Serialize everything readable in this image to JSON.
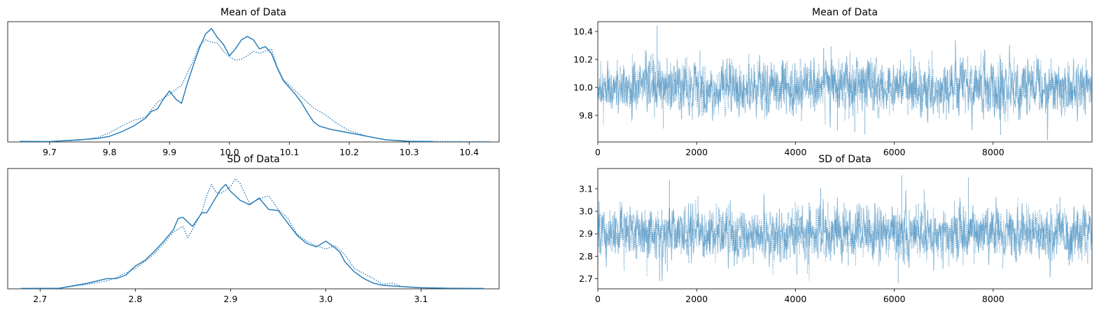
{
  "figure": {
    "kind": "MCMC trace plot",
    "accent_color": "#1f77b4"
  },
  "chart_data": [
    {
      "id": "kde_mean",
      "type": "line",
      "title": "Mean of Data",
      "xlabel": "",
      "ylabel": "",
      "xlim": [
        9.63,
        10.45
      ],
      "ylim": [
        0,
        1.06
      ],
      "xticks": [
        9.7,
        9.8,
        9.9,
        10.0,
        10.1,
        10.2,
        10.3,
        10.4
      ],
      "xtick_labels": [
        "9.7",
        "9.8",
        "9.9",
        "10.0",
        "10.1",
        "10.2",
        "10.3",
        "10.4"
      ],
      "yticks_shown": false,
      "series": [
        {
          "style": "solid",
          "x": [
            9.65,
            9.7,
            9.75,
            9.78,
            9.8,
            9.82,
            9.84,
            9.86,
            9.87,
            9.88,
            9.89,
            9.9,
            9.91,
            9.92,
            9.93,
            9.94,
            9.95,
            9.96,
            9.97,
            9.98,
            9.99,
            10.0,
            10.01,
            10.02,
            10.03,
            10.04,
            10.05,
            10.06,
            10.07,
            10.08,
            10.09,
            10.1,
            10.11,
            10.12,
            10.13,
            10.14,
            10.15,
            10.17,
            10.2,
            10.23,
            10.26,
            10.3,
            10.34
          ],
          "y": [
            0.005,
            0.004,
            0.02,
            0.03,
            0.05,
            0.09,
            0.14,
            0.21,
            0.27,
            0.29,
            0.38,
            0.45,
            0.38,
            0.34,
            0.52,
            0.68,
            0.83,
            0.95,
            1.0,
            0.92,
            0.86,
            0.76,
            0.82,
            0.9,
            0.93,
            0.9,
            0.82,
            0.84,
            0.78,
            0.65,
            0.54,
            0.48,
            0.42,
            0.35,
            0.26,
            0.18,
            0.14,
            0.11,
            0.08,
            0.05,
            0.02,
            0.005,
            0.004
          ]
        },
        {
          "style": "dotted",
          "x": [
            9.65,
            9.7,
            9.75,
            9.78,
            9.8,
            9.82,
            9.84,
            9.86,
            9.88,
            9.9,
            9.92,
            9.94,
            9.95,
            9.96,
            9.97,
            9.98,
            9.99,
            10.0,
            10.01,
            10.02,
            10.03,
            10.04,
            10.05,
            10.06,
            10.07,
            10.08,
            10.09,
            10.1,
            10.11,
            10.12,
            10.14,
            10.16,
            10.18,
            10.2,
            10.23,
            10.26,
            10.3,
            10.35,
            10.4,
            10.437
          ],
          "y": [
            0.005,
            0.004,
            0.015,
            0.04,
            0.08,
            0.14,
            0.19,
            0.22,
            0.35,
            0.42,
            0.5,
            0.72,
            0.85,
            0.9,
            0.88,
            0.87,
            0.8,
            0.75,
            0.72,
            0.73,
            0.76,
            0.8,
            0.78,
            0.8,
            0.82,
            0.66,
            0.55,
            0.5,
            0.45,
            0.4,
            0.3,
            0.24,
            0.16,
            0.1,
            0.05,
            0.02,
            0.008,
            0.005,
            0.004,
            0.004
          ]
        }
      ]
    },
    {
      "id": "trace_mean",
      "type": "line",
      "title": "Mean of Data",
      "xlabel": "",
      "ylabel": "",
      "xlim": [
        0,
        10000
      ],
      "ylim": [
        9.61,
        10.47
      ],
      "xticks": [
        0,
        2000,
        4000,
        6000,
        8000
      ],
      "xtick_labels": [
        "0",
        "2000",
        "4000",
        "6000",
        "8000"
      ],
      "yticks": [
        9.8,
        10.0,
        10.2,
        10.4
      ],
      "ytick_labels": [
        "9.8",
        "10.0",
        "10.2",
        "10.4"
      ],
      "series": [
        {
          "style": "solid",
          "n": 10000,
          "mean": 10.0,
          "sd": 0.093,
          "color": "#1f77b4",
          "alpha": 0.5
        },
        {
          "style": "dotted",
          "n": 10000,
          "mean": 10.0,
          "sd": 0.093,
          "color": "#1f77b4",
          "alpha": 0.5
        }
      ],
      "extremes": [
        [
          1200,
          10.44
        ],
        [
          8150,
          9.66
        ],
        [
          5200,
          9.68
        ],
        [
          4850,
          9.69
        ]
      ]
    },
    {
      "id": "kde_sd",
      "type": "line",
      "title": "SD of Data",
      "xlabel": "",
      "ylabel": "",
      "xlim": [
        2.666,
        3.182
      ],
      "ylim": [
        0,
        1.06
      ],
      "xticks": [
        2.7,
        2.8,
        2.9,
        3.0,
        3.1
      ],
      "xtick_labels": [
        "2.7",
        "2.8",
        "2.9",
        "3.0",
        "3.1"
      ],
      "yticks_shown": false,
      "series": [
        {
          "style": "solid",
          "x": [
            2.68,
            2.72,
            2.75,
            2.77,
            2.78,
            2.79,
            2.8,
            2.81,
            2.82,
            2.83,
            2.84,
            2.845,
            2.85,
            2.86,
            2.87,
            2.875,
            2.88,
            2.89,
            2.895,
            2.9,
            2.91,
            2.92,
            2.93,
            2.94,
            2.95,
            2.96,
            2.97,
            2.98,
            2.99,
            3.0,
            3.01,
            3.015,
            3.02,
            3.03,
            3.04,
            3.05,
            3.06,
            3.08,
            3.1,
            3.13,
            3.166
          ],
          "y": [
            0.004,
            0.005,
            0.05,
            0.09,
            0.09,
            0.12,
            0.2,
            0.25,
            0.33,
            0.42,
            0.52,
            0.62,
            0.63,
            0.55,
            0.67,
            0.67,
            0.74,
            0.88,
            0.92,
            0.86,
            0.78,
            0.74,
            0.8,
            0.7,
            0.69,
            0.58,
            0.47,
            0.4,
            0.37,
            0.42,
            0.36,
            0.32,
            0.24,
            0.15,
            0.09,
            0.05,
            0.03,
            0.02,
            0.01,
            0.005,
            0.004
          ]
        },
        {
          "style": "dotted",
          "x": [
            2.68,
            2.72,
            2.75,
            2.77,
            2.78,
            2.79,
            2.8,
            2.81,
            2.82,
            2.83,
            2.84,
            2.85,
            2.855,
            2.86,
            2.87,
            2.875,
            2.88,
            2.885,
            2.89,
            2.9,
            2.905,
            2.91,
            2.92,
            2.93,
            2.94,
            2.95,
            2.96,
            2.97,
            2.98,
            2.99,
            3.0,
            3.01,
            3.02,
            3.03,
            3.05,
            3.06,
            3.07,
            3.08,
            3.1,
            3.13,
            3.166
          ],
          "y": [
            0.004,
            0.005,
            0.04,
            0.07,
            0.1,
            0.14,
            0.18,
            0.24,
            0.31,
            0.4,
            0.5,
            0.55,
            0.45,
            0.52,
            0.68,
            0.82,
            0.92,
            0.85,
            0.84,
            0.9,
            0.97,
            0.93,
            0.75,
            0.79,
            0.82,
            0.7,
            0.62,
            0.48,
            0.42,
            0.38,
            0.35,
            0.38,
            0.3,
            0.18,
            0.09,
            0.04,
            0.05,
            0.02,
            0.01,
            0.005,
            0.004
          ]
        }
      ]
    },
    {
      "id": "trace_sd",
      "type": "line",
      "title": "SD of Data",
      "xlabel": "",
      "ylabel": "",
      "xlim": [
        0,
        10000
      ],
      "ylim": [
        2.655,
        3.19
      ],
      "xticks": [
        0,
        2000,
        4000,
        6000,
        8000
      ],
      "xtick_labels": [
        "0",
        "2000",
        "4000",
        "6000",
        "8000"
      ],
      "yticks": [
        2.7,
        2.8,
        2.9,
        3.0,
        3.1
      ],
      "ytick_labels": [
        "2.7",
        "2.8",
        "2.9",
        "3.0",
        "3.1"
      ],
      "series": [
        {
          "style": "solid",
          "n": 10000,
          "mean": 2.9,
          "sd": 0.057,
          "color": "#1f77b4",
          "alpha": 0.5
        },
        {
          "style": "dotted",
          "n": 10000,
          "mean": 2.9,
          "sd": 0.057,
          "color": "#1f77b4",
          "alpha": 0.5
        }
      ],
      "extremes": [
        [
          6150,
          3.16
        ],
        [
          1450,
          3.14
        ],
        [
          7500,
          3.15
        ],
        [
          6080,
          2.68
        ],
        [
          1250,
          2.69
        ]
      ]
    }
  ]
}
